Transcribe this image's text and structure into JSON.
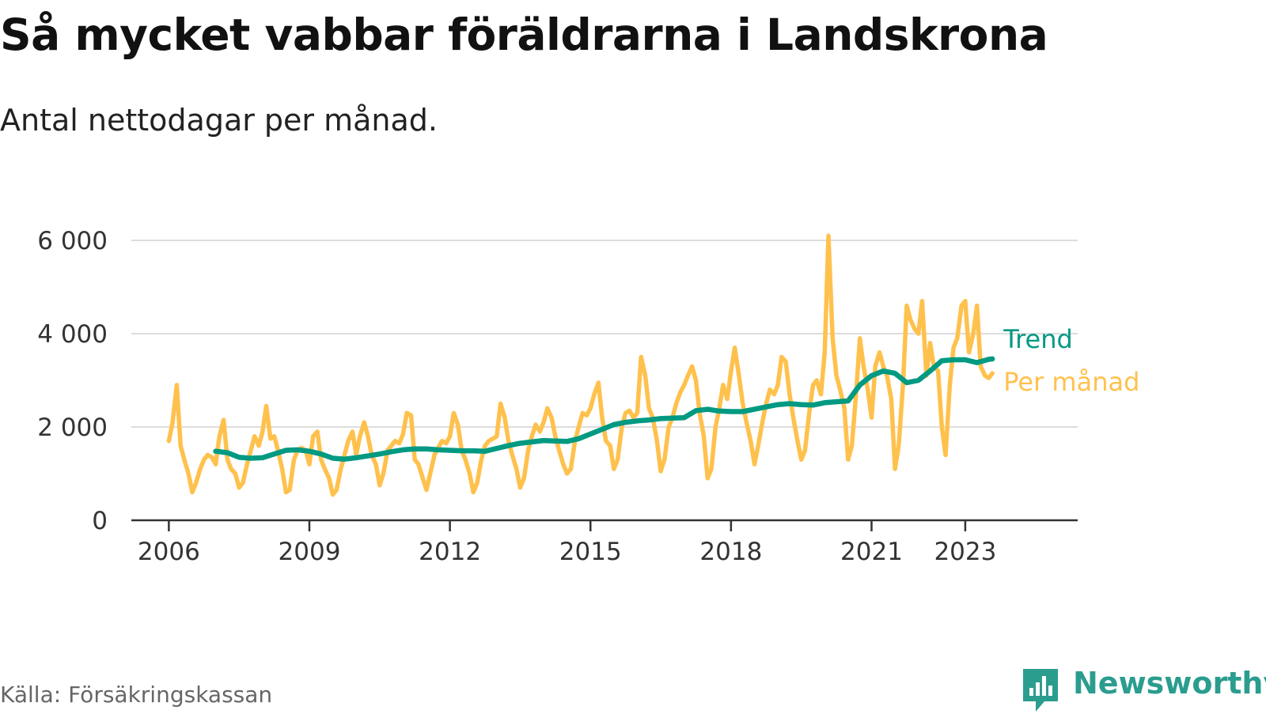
{
  "header": {
    "title": "Så mycket vabbar föräldrarna i Landskrona",
    "subtitle": "Antal nettodagar per månad."
  },
  "footer": {
    "source": "Källa: Försäkringskassan",
    "brand": "Newsworthy",
    "brand_icon": "bar-chart-speech-bubble-icon",
    "brand_color": "#2a9d8f"
  },
  "chart_data": {
    "type": "line",
    "title": "",
    "xlabel": "",
    "ylabel": "",
    "xlim": [
      2005.2,
      2025.4
    ],
    "ylim": [
      0,
      6000
    ],
    "grid": true,
    "y_ticks": [
      {
        "value": 0,
        "label": "0"
      },
      {
        "value": 2000,
        "label": "2 000"
      },
      {
        "value": 4000,
        "label": "4 000"
      },
      {
        "value": 6000,
        "label": "6 000"
      }
    ],
    "x_ticks": [
      {
        "value": 2006,
        "label": "2006"
      },
      {
        "value": 2009,
        "label": "2009"
      },
      {
        "value": 2012,
        "label": "2012"
      },
      {
        "value": 2015,
        "label": "2015"
      },
      {
        "value": 2018,
        "label": "2018"
      },
      {
        "value": 2021,
        "label": "2021"
      },
      {
        "value": 2023,
        "label": "2023"
      }
    ],
    "legend": "direct labels at line ends",
    "series": [
      {
        "name": "Per månad",
        "color": "#ffc14d",
        "x": [
          2006.0,
          2006.08,
          2006.17,
          2006.25,
          2006.33,
          2006.42,
          2006.5,
          2006.58,
          2006.67,
          2006.75,
          2006.83,
          2006.92,
          2007.0,
          2007.08,
          2007.17,
          2007.25,
          2007.33,
          2007.42,
          2007.5,
          2007.58,
          2007.67,
          2007.75,
          2007.83,
          2007.92,
          2008.0,
          2008.08,
          2008.17,
          2008.25,
          2008.33,
          2008.42,
          2008.5,
          2008.58,
          2008.67,
          2008.75,
          2008.83,
          2008.92,
          2009.0,
          2009.08,
          2009.17,
          2009.25,
          2009.33,
          2009.42,
          2009.5,
          2009.58,
          2009.67,
          2009.75,
          2009.83,
          2009.92,
          2010.0,
          2010.08,
          2010.17,
          2010.25,
          2010.33,
          2010.42,
          2010.5,
          2010.58,
          2010.67,
          2010.75,
          2010.83,
          2010.92,
          2011.0,
          2011.08,
          2011.17,
          2011.25,
          2011.33,
          2011.42,
          2011.5,
          2011.58,
          2011.67,
          2011.75,
          2011.83,
          2011.92,
          2012.0,
          2012.08,
          2012.17,
          2012.25,
          2012.33,
          2012.42,
          2012.5,
          2012.58,
          2012.67,
          2012.75,
          2012.83,
          2012.92,
          2013.0,
          2013.08,
          2013.17,
          2013.25,
          2013.33,
          2013.42,
          2013.5,
          2013.58,
          2013.67,
          2013.75,
          2013.83,
          2013.92,
          2014.0,
          2014.08,
          2014.17,
          2014.25,
          2014.33,
          2014.42,
          2014.5,
          2014.58,
          2014.67,
          2014.75,
          2014.83,
          2014.92,
          2015.0,
          2015.08,
          2015.17,
          2015.25,
          2015.33,
          2015.42,
          2015.5,
          2015.58,
          2015.67,
          2015.75,
          2015.83,
          2015.92,
          2016.0,
          2016.08,
          2016.17,
          2016.25,
          2016.33,
          2016.42,
          2016.5,
          2016.58,
          2016.67,
          2016.75,
          2016.83,
          2016.92,
          2017.0,
          2017.08,
          2017.17,
          2017.25,
          2017.33,
          2017.42,
          2017.5,
          2017.58,
          2017.67,
          2017.75,
          2017.83,
          2017.92,
          2018.0,
          2018.08,
          2018.17,
          2018.25,
          2018.33,
          2018.42,
          2018.5,
          2018.58,
          2018.67,
          2018.75,
          2018.83,
          2018.92,
          2019.0,
          2019.08,
          2019.17,
          2019.25,
          2019.33,
          2019.42,
          2019.5,
          2019.58,
          2019.67,
          2019.75,
          2019.83,
          2019.92,
          2020.0,
          2020.08,
          2020.17,
          2020.25,
          2020.33,
          2020.42,
          2020.5,
          2020.58,
          2020.67,
          2020.75,
          2020.83,
          2020.92,
          2021.0,
          2021.08,
          2021.17,
          2021.25,
          2021.33,
          2021.42,
          2021.5,
          2021.58,
          2021.67,
          2021.75,
          2021.83,
          2021.92,
          2022.0,
          2022.08,
          2022.17,
          2022.25,
          2022.33,
          2022.42,
          2022.5,
          2022.58,
          2022.67,
          2022.75,
          2022.83,
          2022.92,
          2023.0,
          2023.08,
          2023.17,
          2023.25,
          2023.33,
          2023.42,
          2023.5,
          2023.58
        ],
        "y": [
          1700,
          2100,
          2900,
          1600,
          1300,
          1000,
          600,
          800,
          1100,
          1300,
          1400,
          1350,
          1200,
          1800,
          2150,
          1300,
          1100,
          1000,
          700,
          800,
          1200,
          1500,
          1800,
          1600,
          1900,
          2450,
          1750,
          1800,
          1500,
          1100,
          600,
          650,
          1300,
          1500,
          1550,
          1500,
          1200,
          1800,
          1900,
          1300,
          1100,
          900,
          550,
          650,
          1100,
          1400,
          1700,
          1900,
          1400,
          1800,
          2100,
          1800,
          1400,
          1200,
          750,
          1000,
          1500,
          1600,
          1700,
          1650,
          1850,
          2300,
          2250,
          1300,
          1200,
          900,
          650,
          1000,
          1400,
          1550,
          1700,
          1650,
          1800,
          2300,
          2050,
          1500,
          1300,
          1000,
          600,
          800,
          1300,
          1600,
          1700,
          1750,
          1800,
          2500,
          2200,
          1700,
          1400,
          1100,
          700,
          900,
          1500,
          1800,
          2050,
          1900,
          2100,
          2400,
          2200,
          1800,
          1500,
          1200,
          1000,
          1100,
          1700,
          2000,
          2300,
          2250,
          2400,
          2700,
          2950,
          2200,
          1700,
          1600,
          1100,
          1300,
          2000,
          2300,
          2350,
          2200,
          2300,
          3500,
          3100,
          2400,
          2200,
          1700,
          1050,
          1300,
          2000,
          2200,
          2500,
          2750,
          2900,
          3100,
          3300,
          3000,
          2300,
          1800,
          900,
          1100,
          2000,
          2400,
          2900,
          2600,
          3200,
          3700,
          3100,
          2500,
          2100,
          1700,
          1200,
          1600,
          2100,
          2500,
          2800,
          2700,
          2900,
          3500,
          3400,
          2700,
          2200,
          1700,
          1300,
          1500,
          2300,
          2900,
          3000,
          2700,
          3600,
          6100,
          3900,
          3100,
          2800,
          2400,
          1300,
          1600,
          2700,
          3900,
          3300,
          2800,
          2200,
          3300,
          3600,
          3300,
          3100,
          2600,
          1100,
          1600,
          2900,
          4600,
          4300,
          4100,
          4000,
          4700,
          3100,
          3800,
          3300,
          3200,
          2000,
          1400,
          2900,
          3700,
          3900,
          4600,
          4700,
          3600,
          4000,
          4600,
          3300,
          3100,
          3050,
          3150
        ]
      },
      {
        "name": "Trend",
        "color": "#009982",
        "x": [
          2007.0,
          2007.25,
          2007.5,
          2007.75,
          2008.0,
          2008.25,
          2008.5,
          2008.75,
          2009.0,
          2009.25,
          2009.5,
          2009.75,
          2010.0,
          2010.25,
          2010.5,
          2010.75,
          2011.0,
          2011.25,
          2011.5,
          2011.75,
          2012.0,
          2012.25,
          2012.5,
          2012.75,
          2013.0,
          2013.25,
          2013.5,
          2013.75,
          2014.0,
          2014.25,
          2014.5,
          2014.75,
          2015.0,
          2015.25,
          2015.5,
          2015.75,
          2016.0,
          2016.25,
          2016.5,
          2016.75,
          2017.0,
          2017.25,
          2017.5,
          2017.75,
          2018.0,
          2018.25,
          2018.5,
          2018.75,
          2019.0,
          2019.25,
          2019.5,
          2019.75,
          2020.0,
          2020.25,
          2020.5,
          2020.75,
          2021.0,
          2021.25,
          2021.5,
          2021.75,
          2022.0,
          2022.25,
          2022.5,
          2022.75,
          2023.0,
          2023.25,
          2023.5,
          2023.58
        ],
        "y": [
          1480,
          1450,
          1350,
          1330,
          1340,
          1420,
          1500,
          1510,
          1480,
          1420,
          1330,
          1310,
          1340,
          1380,
          1420,
          1470,
          1510,
          1530,
          1530,
          1510,
          1500,
          1490,
          1490,
          1480,
          1540,
          1600,
          1650,
          1680,
          1710,
          1700,
          1690,
          1750,
          1850,
          1950,
          2050,
          2100,
          2130,
          2150,
          2180,
          2190,
          2200,
          2350,
          2380,
          2340,
          2330,
          2330,
          2380,
          2430,
          2480,
          2500,
          2480,
          2470,
          2520,
          2540,
          2560,
          2900,
          3100,
          3200,
          3150,
          2950,
          3000,
          3200,
          3420,
          3440,
          3440,
          3380,
          3450,
          3460
        ]
      }
    ]
  }
}
